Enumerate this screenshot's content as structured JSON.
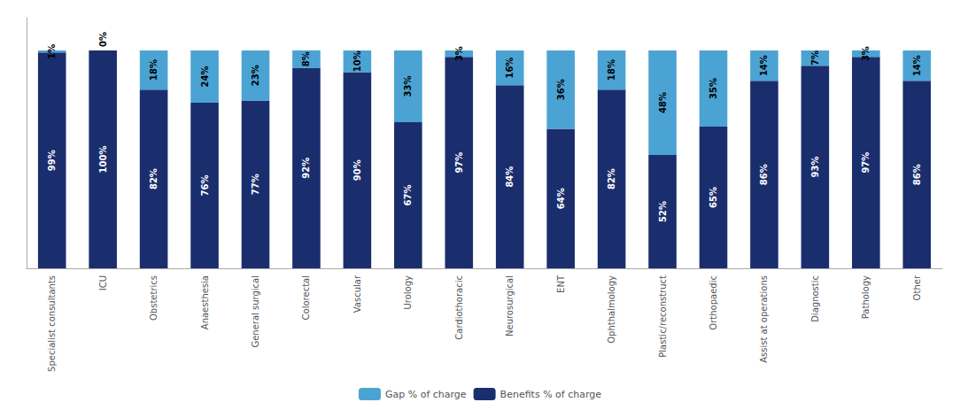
{
  "chart_data": {
    "type": "bar",
    "stacked": true,
    "categories": [
      "Specialist consultants",
      "ICU",
      "Obstetrics",
      "Anaesthesia",
      "General surgical",
      "Colorectal",
      "Vascular",
      "Urology",
      "Cardiothoracic",
      "Neurosurgical",
      "ENT",
      "Ophthalmology",
      "Plastic/reconstruct",
      "Orthopaedic",
      "Assist at operations",
      "Diagnostic",
      "Pathology",
      "Other"
    ],
    "series": [
      {
        "name": "Benefits % of charge",
        "color": "#1a2e6e",
        "values": [
          99,
          100,
          82,
          76,
          77,
          92,
          90,
          67,
          97,
          84,
          64,
          82,
          52,
          65,
          86,
          93,
          97,
          86
        ],
        "value_labels": [
          "99%",
          "100%",
          "82%",
          "76%",
          "77%",
          "92%",
          "90%",
          "67%",
          "97%",
          "84%",
          "64%",
          "82%",
          "52%",
          "65%",
          "86%",
          "93%",
          "97%",
          "86%"
        ]
      },
      {
        "name": "Gap % of charge",
        "color": "#4ba3d4",
        "values": [
          1,
          0,
          18,
          24,
          23,
          8,
          10,
          33,
          3,
          16,
          36,
          18,
          48,
          35,
          14,
          7,
          3,
          14
        ],
        "value_labels": [
          "1%",
          "0%",
          "18%",
          "24%",
          "23%",
          "8%",
          "10%",
          "33%",
          "3%",
          "16%",
          "36%",
          "18%",
          "48%",
          "35%",
          "14%",
          "7%",
          "3%",
          "14%"
        ]
      }
    ],
    "ylim": [
      0,
      115
    ],
    "yticks": [],
    "data_labels": true,
    "tick_labels": "x",
    "grid": false,
    "legend": "bottom"
  }
}
